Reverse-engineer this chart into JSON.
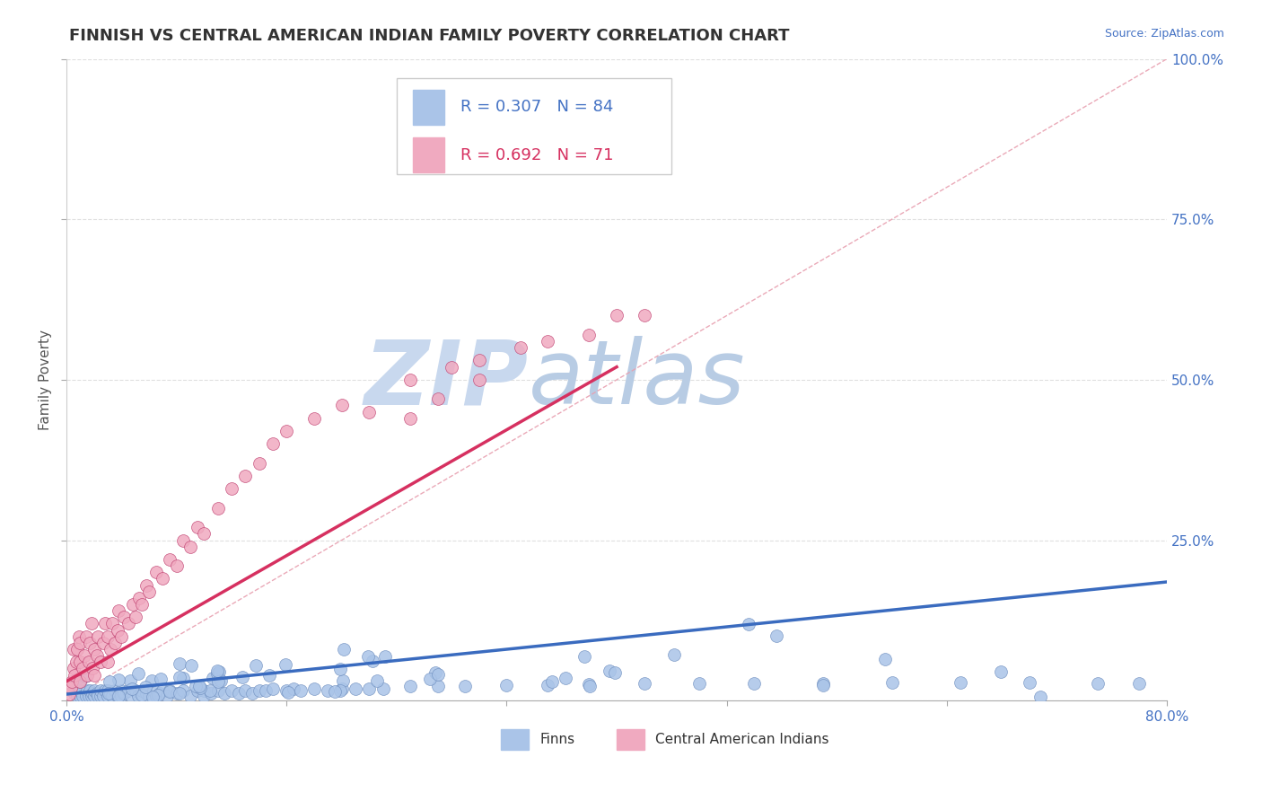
{
  "title": "FINNISH VS CENTRAL AMERICAN INDIAN FAMILY POVERTY CORRELATION CHART",
  "source_text": "Source: ZipAtlas.com",
  "ylabel": "Family Poverty",
  "xlim": [
    0.0,
    0.8
  ],
  "ylim": [
    0.0,
    1.0
  ],
  "xticks": [
    0.0,
    0.16,
    0.32,
    0.48,
    0.64,
    0.8
  ],
  "yticks": [
    0.0,
    0.25,
    0.5,
    0.75,
    1.0
  ],
  "ytick_labels": [
    "",
    "25.0%",
    "50.0%",
    "75.0%",
    "100.0%"
  ],
  "legend_r1": "R = 0.307",
  "legend_n1": "N = 84",
  "legend_r2": "R = 0.692",
  "legend_n2": "N = 71",
  "legend_label1": "Finns",
  "legend_label2": "Central American Indians",
  "color_finns": "#aac4e8",
  "color_cai": "#f0aac0",
  "trendline_color_finns": "#3a6bbf",
  "trendline_color_cai": "#d63060",
  "diag_color": "#e8a0b0",
  "watermark_zip_color": "#c8d8ee",
  "watermark_atlas_color": "#b8cce4",
  "background_color": "#ffffff",
  "grid_color": "#d8d8d8",
  "finns_x": [
    0.005,
    0.007,
    0.008,
    0.009,
    0.01,
    0.01,
    0.01,
    0.012,
    0.014,
    0.015,
    0.016,
    0.017,
    0.018,
    0.019,
    0.02,
    0.02,
    0.022,
    0.023,
    0.025,
    0.025,
    0.027,
    0.028,
    0.03,
    0.03,
    0.032,
    0.033,
    0.035,
    0.037,
    0.04,
    0.04,
    0.042,
    0.045,
    0.047,
    0.05,
    0.052,
    0.055,
    0.058,
    0.06,
    0.063,
    0.065,
    0.068,
    0.07,
    0.073,
    0.075,
    0.08,
    0.085,
    0.09,
    0.095,
    0.1,
    0.1,
    0.105,
    0.11,
    0.115,
    0.12,
    0.125,
    0.13,
    0.135,
    0.14,
    0.145,
    0.15,
    0.16,
    0.165,
    0.17,
    0.18,
    0.19,
    0.2,
    0.21,
    0.22,
    0.23,
    0.25,
    0.27,
    0.29,
    0.32,
    0.35,
    0.38,
    0.42,
    0.46,
    0.5,
    0.55,
    0.6,
    0.65,
    0.7,
    0.75,
    0.78
  ],
  "finns_y": [
    0.005,
    0.02,
    0.005,
    0.01,
    0.005,
    0.01,
    0.02,
    0.005,
    0.005,
    0.01,
    0.005,
    0.01,
    0.005,
    0.008,
    0.005,
    0.01,
    0.008,
    0.005,
    0.005,
    0.01,
    0.005,
    0.01,
    0.005,
    0.01,
    0.008,
    0.005,
    0.01,
    0.005,
    0.01,
    0.005,
    0.008,
    0.01,
    0.005,
    0.01,
    0.005,
    0.01,
    0.008,
    0.005,
    0.01,
    0.005,
    0.008,
    0.01,
    0.005,
    0.01,
    0.008,
    0.01,
    0.005,
    0.01,
    0.01,
    0.005,
    0.008,
    0.01,
    0.008,
    0.01,
    0.008,
    0.01,
    0.008,
    0.01,
    0.01,
    0.012,
    0.01,
    0.012,
    0.01,
    0.012,
    0.01,
    0.012,
    0.013,
    0.012,
    0.013,
    0.015,
    0.015,
    0.015,
    0.016,
    0.016,
    0.017,
    0.018,
    0.018,
    0.018,
    0.018,
    0.019,
    0.019,
    0.019,
    0.018,
    0.018
  ],
  "finns_y2": [
    0.02,
    0.045,
    0.01,
    0.02,
    0.01,
    0.02,
    0.04,
    0.01,
    0.01,
    0.02,
    0.01,
    0.02,
    0.01,
    0.015,
    0.01,
    0.02,
    0.015,
    0.01,
    0.01,
    0.02,
    0.01,
    0.02,
    0.01,
    0.02,
    0.015,
    0.01,
    0.02,
    0.01,
    0.02,
    0.01,
    0.015,
    0.02,
    0.01,
    0.02,
    0.01,
    0.02,
    0.015,
    0.01,
    0.02,
    0.01,
    0.015,
    0.02,
    0.01,
    0.02,
    0.015,
    0.02,
    0.01,
    0.02,
    0.02,
    0.01,
    0.015,
    0.02,
    0.015,
    0.02,
    0.015,
    0.02,
    0.015,
    0.02,
    0.02,
    0.025,
    0.02,
    0.025,
    0.02,
    0.025,
    0.02,
    0.025,
    0.025,
    0.025,
    0.025,
    0.03,
    0.03,
    0.03,
    0.032,
    0.032,
    0.034,
    0.036,
    0.036,
    0.036,
    0.036,
    0.038,
    0.038,
    0.038,
    0.036,
    0.036
  ],
  "cai_x": [
    0.002,
    0.003,
    0.004,
    0.005,
    0.005,
    0.006,
    0.007,
    0.008,
    0.009,
    0.01,
    0.01,
    0.01,
    0.012,
    0.013,
    0.014,
    0.015,
    0.016,
    0.017,
    0.018,
    0.019,
    0.02,
    0.02,
    0.022,
    0.023,
    0.025,
    0.027,
    0.028,
    0.03,
    0.03,
    0.032,
    0.033,
    0.035,
    0.037,
    0.038,
    0.04,
    0.042,
    0.045,
    0.048,
    0.05,
    0.053,
    0.055,
    0.058,
    0.06,
    0.065,
    0.07,
    0.075,
    0.08,
    0.085,
    0.09,
    0.095,
    0.1,
    0.11,
    0.12,
    0.13,
    0.14,
    0.15,
    0.16,
    0.18,
    0.2,
    0.22,
    0.25,
    0.28,
    0.3,
    0.33,
    0.35,
    0.38,
    0.4,
    0.42,
    0.25,
    0.27,
    0.3
  ],
  "cai_y": [
    0.01,
    0.02,
    0.03,
    0.05,
    0.08,
    0.04,
    0.06,
    0.08,
    0.1,
    0.03,
    0.06,
    0.09,
    0.05,
    0.07,
    0.1,
    0.04,
    0.06,
    0.09,
    0.12,
    0.05,
    0.04,
    0.08,
    0.07,
    0.1,
    0.06,
    0.09,
    0.12,
    0.06,
    0.1,
    0.08,
    0.12,
    0.09,
    0.11,
    0.14,
    0.1,
    0.13,
    0.12,
    0.15,
    0.13,
    0.16,
    0.15,
    0.18,
    0.17,
    0.2,
    0.19,
    0.22,
    0.21,
    0.25,
    0.24,
    0.27,
    0.26,
    0.3,
    0.33,
    0.35,
    0.37,
    0.4,
    0.42,
    0.44,
    0.46,
    0.45,
    0.5,
    0.52,
    0.53,
    0.55,
    0.56,
    0.57,
    0.6,
    0.6,
    0.44,
    0.47,
    0.5
  ],
  "title_fontsize": 13,
  "axis_label_fontsize": 11,
  "tick_fontsize": 11,
  "source_fontsize": 9,
  "legend_fontsize": 13
}
